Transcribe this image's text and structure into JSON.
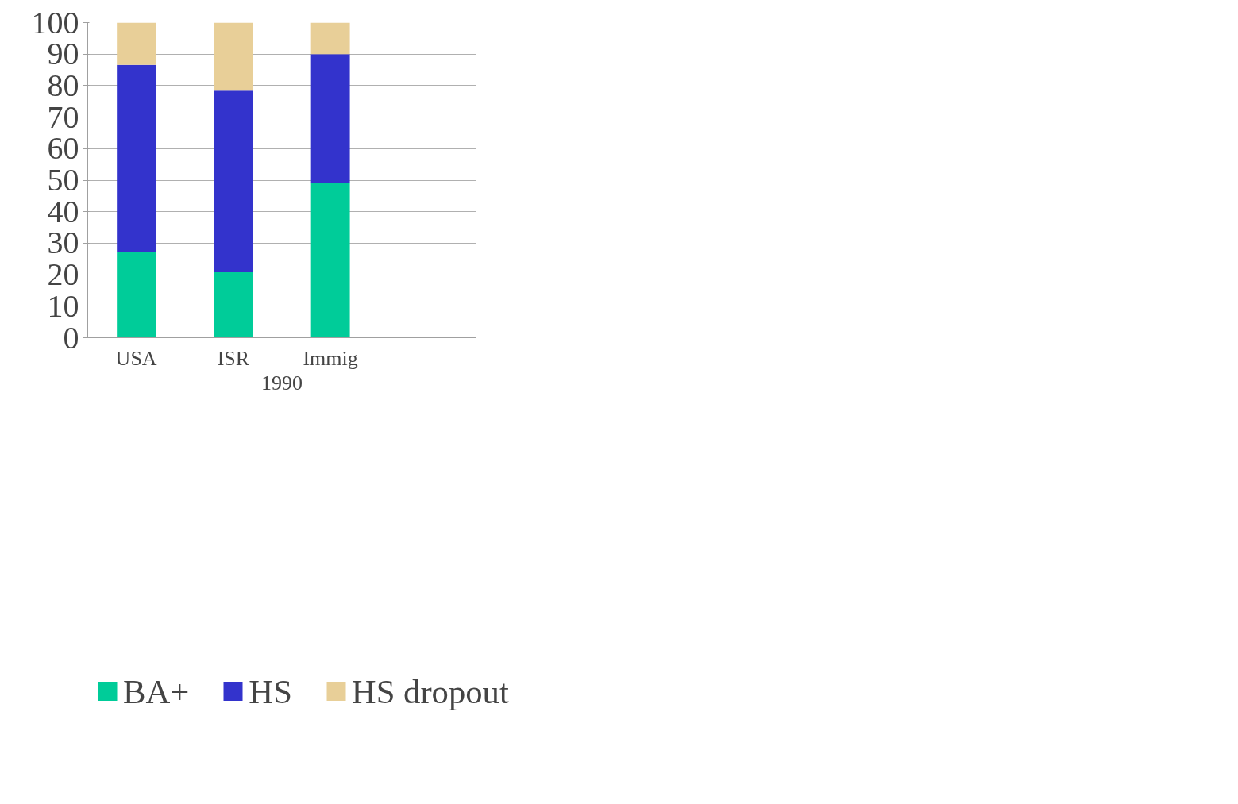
{
  "chart_data": {
    "type": "bar",
    "stacked": true,
    "xlabel": "1990",
    "categories": [
      "USA",
      "ISR",
      "Immig",
      null
    ],
    "series": [
      {
        "name": "BA+",
        "color": "#00cc99",
        "values": [
          27.1,
          20.8,
          49.1,
          null
        ]
      },
      {
        "name": "HS",
        "color": "#3333cc",
        "values": [
          59.5,
          57.6,
          40.9,
          null
        ]
      },
      {
        "name": "HS dropout",
        "color": "#e8cf98",
        "values": [
          13.4,
          21.6,
          10.0,
          null
        ]
      }
    ],
    "ylim": [
      0,
      100
    ],
    "yticks": [
      0,
      10,
      20,
      30,
      40,
      50,
      60,
      70,
      80,
      90,
      100
    ],
    "grid": "y",
    "legend": "bottom"
  }
}
